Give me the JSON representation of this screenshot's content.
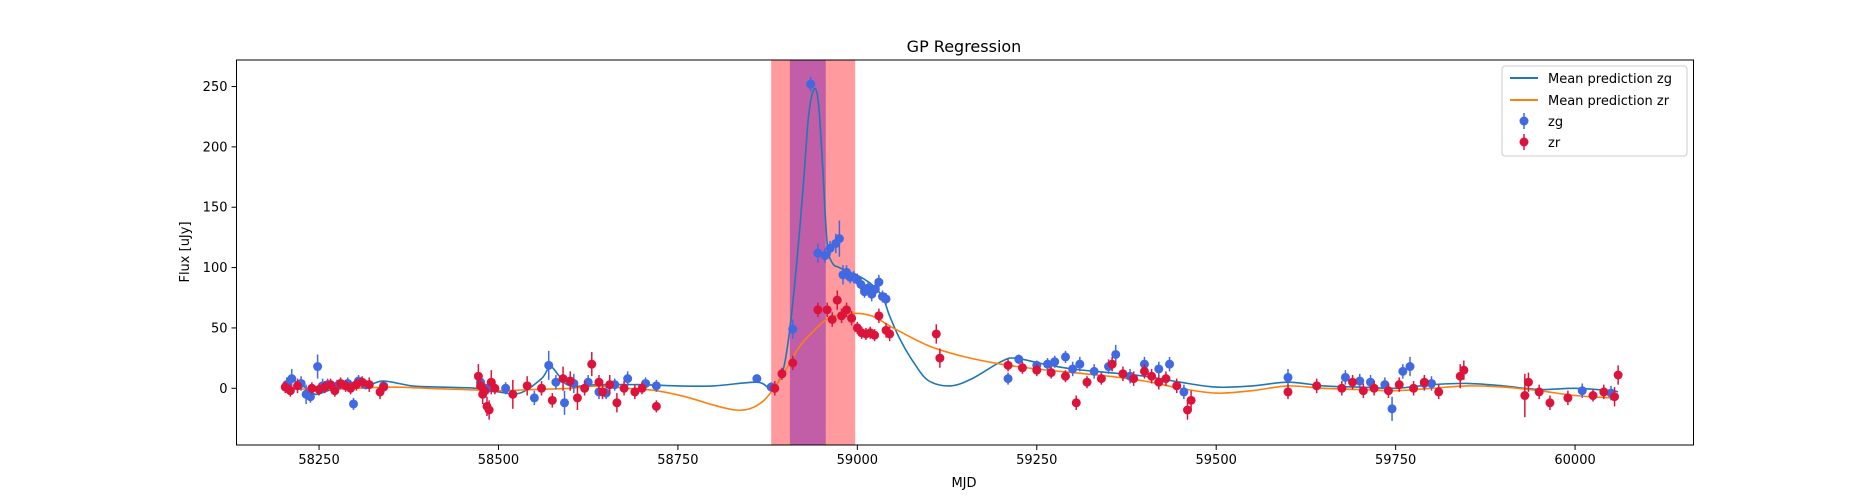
{
  "chart_data": {
    "type": "scatter",
    "title": "GP Regression",
    "xlabel": "MJD",
    "ylabel": "Flux [uJy]",
    "xlim": [
      58135,
      60165
    ],
    "ylim": [
      -47,
      272
    ],
    "xticks": [
      58250,
      58500,
      58750,
      59000,
      59250,
      59500,
      59750,
      60000
    ],
    "yticks": [
      0,
      50,
      100,
      150,
      200,
      250
    ],
    "grid": false,
    "legend_position": "top-right",
    "colors": {
      "zg_line": "#1f77b4",
      "zr_line": "#ff7f0e",
      "zg_points": "#4169e1",
      "zr_points": "#dc143c",
      "outer_band": "#ff9a9e",
      "inner_band": "#c15ea7"
    },
    "shaded_regions": [
      {
        "x": [
          58880,
          58997
        ],
        "role": "outer"
      },
      {
        "x": [
          58906,
          58956
        ],
        "role": "inner"
      }
    ],
    "series": [
      {
        "name": "Mean prediction zg",
        "type": "line",
        "color_key": "zg_line",
        "x": [
          58200,
          58215,
          58230,
          58245,
          58262,
          58280,
          58300,
          58320,
          58340,
          58380,
          58420,
          58470,
          58500,
          58530,
          58560,
          58572,
          58585,
          58600,
          58640,
          58700,
          58750,
          58800,
          58860,
          58880,
          58895,
          58905,
          58915,
          58925,
          58932,
          58940,
          58946,
          58952,
          58958,
          58965,
          58975,
          58990,
          59005,
          59020,
          59035,
          59045,
          59060,
          59080,
          59100,
          59130,
          59160,
          59200,
          59220,
          59260,
          59300,
          59350,
          59400,
          59450,
          59500,
          59550,
          59600,
          59650,
          59700,
          59750,
          59800,
          59850,
          59900,
          59950,
          60000,
          60050,
          60060
        ],
        "y": [
          2,
          6,
          1,
          -5,
          -2,
          1,
          5,
          3,
          6,
          2,
          1,
          0,
          -3,
          -4,
          8,
          18,
          10,
          2,
          3,
          3,
          2,
          2,
          5,
          0,
          12,
          45,
          100,
          170,
          225,
          248,
          235,
          180,
          120,
          104,
          100,
          96,
          92,
          86,
          76,
          60,
          40,
          20,
          6,
          2,
          8,
          22,
          25,
          20,
          16,
          13,
          10,
          5,
          1,
          2,
          5,
          2,
          1,
          0,
          3,
          4,
          2,
          -1,
          0,
          -2,
          -3
        ]
      },
      {
        "name": "Mean prediction zr",
        "type": "line",
        "color_key": "zr_line",
        "x": [
          58200,
          58250,
          58300,
          58350,
          58400,
          58450,
          58500,
          58550,
          58600,
          58640,
          58680,
          58720,
          58760,
          58800,
          58830,
          58850,
          58870,
          58890,
          58905,
          58920,
          58940,
          58960,
          58990,
          59020,
          59050,
          59100,
          59150,
          59200,
          59250,
          59300,
          59350,
          59400,
          59450,
          59500,
          59550,
          59600,
          59650,
          59700,
          59750,
          59800,
          59850,
          59900,
          59950,
          60000,
          60050,
          60060
        ],
        "y": [
          0,
          -1,
          0,
          1,
          0,
          -1,
          -2,
          -1,
          0,
          2,
          0,
          -2,
          -7,
          -14,
          -18,
          -17,
          -10,
          5,
          20,
          35,
          48,
          58,
          62,
          60,
          50,
          35,
          26,
          20,
          16,
          13,
          10,
          6,
          0,
          -4,
          -2,
          2,
          0,
          -1,
          -2,
          0,
          2,
          1,
          -2,
          -6,
          -8,
          -8
        ]
      },
      {
        "name": "zg",
        "type": "errorbar",
        "color_key": "zg_points",
        "x": [
          58205,
          58212,
          58225,
          58232,
          58238,
          58248,
          58255,
          58262,
          58275,
          58290,
          58298,
          58305,
          58315,
          58340,
          58475,
          58485,
          58510,
          58550,
          58570,
          58580,
          58592,
          58605,
          58625,
          58640,
          58650,
          58662,
          58680,
          58705,
          58720,
          58860,
          58880,
          58910,
          58935,
          58945,
          58955,
          58962,
          58970,
          58975,
          58980,
          58985,
          58990,
          58995,
          59000,
          59005,
          59010,
          59015,
          59020,
          59025,
          59030,
          59035,
          59040,
          59210,
          59225,
          59250,
          59265,
          59275,
          59290,
          59300,
          59310,
          59330,
          59350,
          59360,
          59380,
          59400,
          59420,
          59435,
          59455,
          59600,
          59680,
          59700,
          59715,
          59735,
          59745,
          59760,
          59770,
          59790,
          59800,
          60010,
          60050
        ],
        "y": [
          3,
          8,
          4,
          -5,
          -7,
          18,
          2,
          3,
          2,
          4,
          -13,
          6,
          3,
          2,
          5,
          0,
          0,
          -8,
          19,
          5,
          -12,
          4,
          5,
          -3,
          -4,
          3,
          8,
          4,
          2,
          8,
          1,
          49,
          252,
          112,
          110,
          116,
          120,
          124,
          94,
          96,
          92,
          92,
          90,
          86,
          80,
          83,
          78,
          82,
          88,
          76,
          74,
          8,
          24,
          19,
          20,
          22,
          26,
          16,
          20,
          14,
          18,
          28,
          10,
          20,
          16,
          20,
          -3,
          9,
          9,
          6,
          5,
          3,
          -17,
          14,
          18,
          4,
          4,
          -2,
          -4
        ],
        "yerr": [
          6,
          8,
          6,
          8,
          5,
          10,
          6,
          5,
          5,
          5,
          5,
          5,
          4,
          4,
          8,
          5,
          5,
          6,
          12,
          6,
          10,
          8,
          6,
          6,
          5,
          5,
          6,
          5,
          5,
          3,
          4,
          8,
          6,
          8,
          6,
          6,
          8,
          15,
          8,
          6,
          5,
          5,
          5,
          5,
          5,
          5,
          6,
          6,
          6,
          5,
          5,
          5,
          4,
          4,
          5,
          5,
          5,
          6,
          6,
          6,
          6,
          8,
          6,
          6,
          6,
          6,
          6,
          7,
          6,
          6,
          6,
          6,
          10,
          6,
          8,
          6,
          6,
          6,
          6
        ]
      },
      {
        "name": "zr",
        "type": "errorbar",
        "color_key": "zr_points",
        "x": [
          58203,
          58210,
          58220,
          58240,
          58250,
          58258,
          58266,
          58272,
          58280,
          58287,
          58294,
          58302,
          58310,
          58320,
          58335,
          58340,
          58472,
          58475,
          58478,
          58481,
          58484,
          58487,
          58490,
          58495,
          58520,
          58540,
          58560,
          58575,
          58590,
          58600,
          58610,
          58620,
          58630,
          58640,
          58645,
          58655,
          58665,
          58675,
          58690,
          58700,
          58720,
          58885,
          58895,
          58910,
          58945,
          58958,
          58965,
          58972,
          58978,
          58985,
          58992,
          59000,
          59006,
          59012,
          59018,
          59024,
          59030,
          59040,
          59045,
          59110,
          59115,
          59210,
          59230,
          59250,
          59270,
          59290,
          59305,
          59320,
          59340,
          59355,
          59370,
          59385,
          59400,
          59410,
          59420,
          59430,
          59445,
          59460,
          59465,
          59600,
          59640,
          59675,
          59690,
          59705,
          59720,
          59740,
          59755,
          59775,
          59790,
          59810,
          59840,
          59845,
          59930,
          59935,
          59950,
          59965,
          59990,
          60025,
          60040,
          60055,
          60060
        ],
        "y": [
          1,
          -2,
          2,
          0,
          -1,
          1,
          3,
          -2,
          4,
          2,
          0,
          3,
          5,
          3,
          -3,
          1,
          10,
          2,
          -5,
          -2,
          -15,
          -18,
          5,
          0,
          -5,
          2,
          0,
          -10,
          8,
          6,
          -8,
          0,
          20,
          5,
          -3,
          3,
          -12,
          0,
          -3,
          0,
          -15,
          0,
          12,
          21,
          65,
          65,
          57,
          73,
          60,
          65,
          58,
          50,
          46,
          45,
          46,
          44,
          60,
          48,
          45,
          45,
          25,
          19,
          17,
          15,
          13,
          10,
          -12,
          5,
          8,
          20,
          12,
          8,
          14,
          10,
          5,
          8,
          2,
          -18,
          -10,
          -3,
          2,
          0,
          5,
          -2,
          0,
          -2,
          3,
          0,
          5,
          -3,
          10,
          15,
          -6,
          5,
          -3,
          -12,
          -8,
          -6,
          -3,
          -7,
          11
        ],
        "yerr": [
          5,
          5,
          6,
          5,
          5,
          5,
          5,
          5,
          5,
          5,
          5,
          5,
          5,
          6,
          6,
          5,
          10,
          8,
          8,
          6,
          8,
          8,
          10,
          5,
          12,
          8,
          6,
          6,
          10,
          8,
          10,
          6,
          10,
          6,
          6,
          8,
          8,
          6,
          6,
          5,
          5,
          6,
          5,
          6,
          6,
          6,
          6,
          8,
          6,
          6,
          6,
          5,
          5,
          5,
          5,
          5,
          6,
          6,
          6,
          8,
          8,
          5,
          5,
          5,
          5,
          5,
          6,
          5,
          5,
          6,
          6,
          6,
          6,
          6,
          6,
          6,
          6,
          8,
          8,
          6,
          6,
          6,
          6,
          6,
          6,
          6,
          6,
          6,
          6,
          6,
          10,
          8,
          18,
          8,
          6,
          6,
          6,
          5,
          6,
          8,
          8
        ]
      }
    ]
  }
}
